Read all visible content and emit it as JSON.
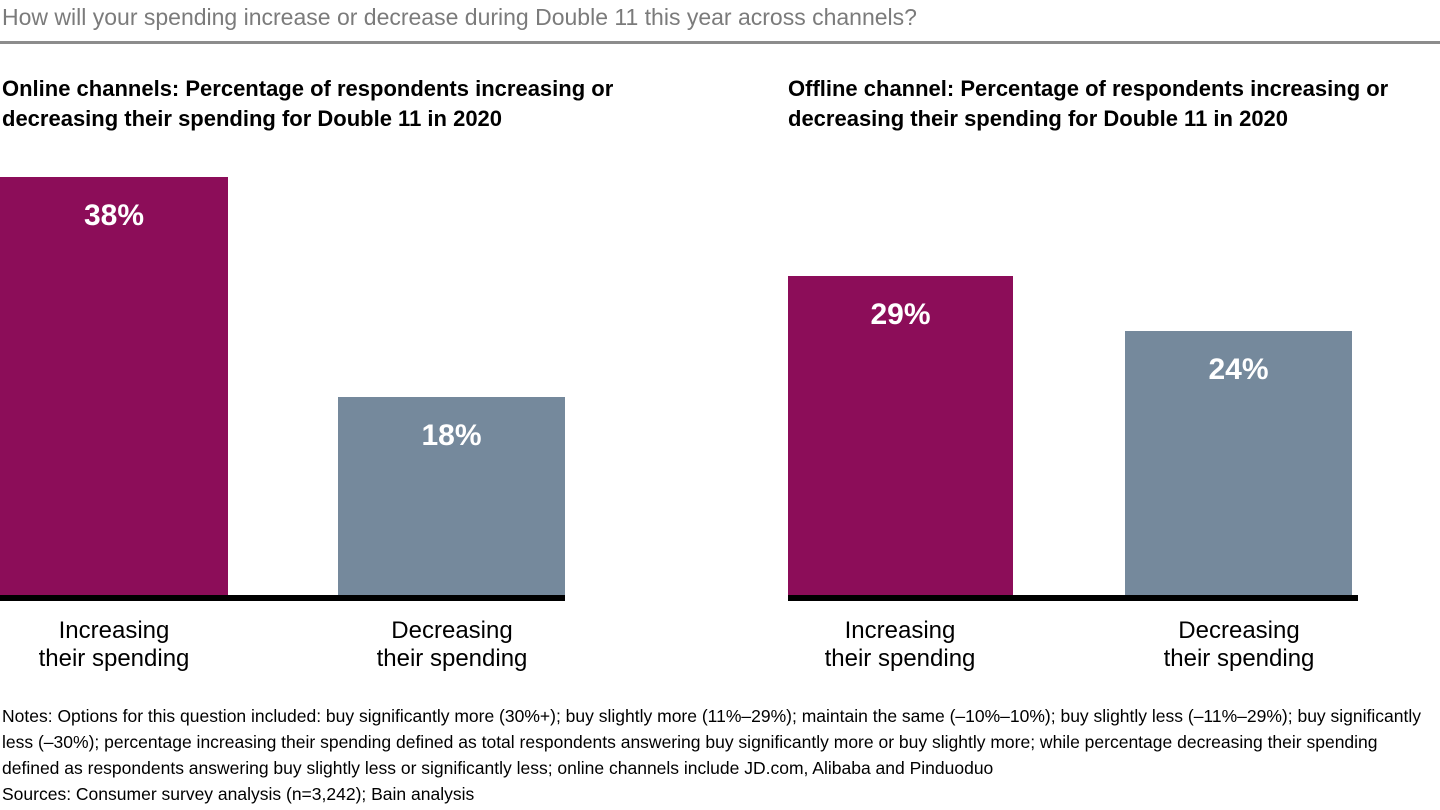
{
  "header": {
    "question": "How will your spending increase or decrease during Double 11 this year across channels?"
  },
  "chart_data": [
    {
      "type": "bar",
      "title": "Online channels: Percentage of respondents increasing or decreasing their spending for Double 11 in 2020",
      "categories": [
        "Increasing their spending",
        "Decreasing their spending"
      ],
      "category_labels": [
        "Increasing\ntheir spending",
        "Decreasing\ntheir spending"
      ],
      "values": [
        38,
        18
      ],
      "value_labels": [
        "38%",
        "18%"
      ],
      "bar_colors": [
        "#8C0D59",
        "#75899C"
      ],
      "xlabel": "",
      "ylabel": "",
      "ylim": [
        0,
        40
      ],
      "grid": false,
      "legend_position": "none"
    },
    {
      "type": "bar",
      "title": "Offline channel: Percentage of respondents increasing or decreasing their spending for Double 11 in 2020",
      "categories": [
        "Increasing their spending",
        "Decreasing their spending"
      ],
      "category_labels": [
        "Increasing\ntheir spending",
        "Decreasing\ntheir spending"
      ],
      "values": [
        29,
        24
      ],
      "value_labels": [
        "29%",
        "24%"
      ],
      "bar_colors": [
        "#8C0D59",
        "#75899C"
      ],
      "xlabel": "",
      "ylabel": "",
      "ylim": [
        0,
        40
      ],
      "grid": false,
      "legend_position": "none"
    }
  ],
  "footer": {
    "notes": "Notes: Options for this question included: buy significantly more (30%+); buy slightly more (11%–29%); maintain the same (–10%–10%); buy slightly less (–11%–29%); buy significantly less (–30%); percentage increasing their spending defined as total respondents answering buy significantly more or buy slightly more; while percentage decreasing their spending defined as respondents answering buy slightly less or significantly less; online channels include JD.com, Alibaba and Pinduoduo",
    "sources": "Sources: Consumer survey analysis (n=3,242); Bain analysis"
  },
  "style": {
    "accent_magenta": "#8C0D59",
    "accent_gray_blue": "#75899C",
    "axis_black": "#000000",
    "title_gray": "#7B7B7B",
    "rule_gray": "#8C8C8C"
  }
}
